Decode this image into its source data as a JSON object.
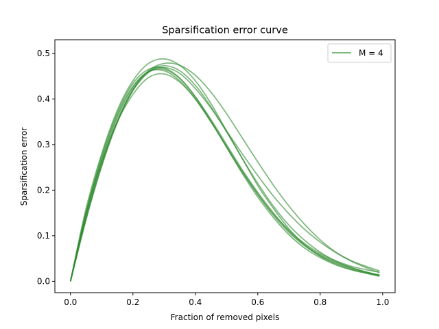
{
  "chart_data": {
    "type": "line",
    "title": "Sparsification error curve",
    "xlabel": "Fraction of removed pixels",
    "ylabel": "Sparsification error",
    "xlim": [
      -0.05,
      1.04
    ],
    "ylim": [
      -0.025,
      0.53
    ],
    "xticks": [
      0.0,
      0.2,
      0.4,
      0.6,
      0.8,
      1.0
    ],
    "xtick_labels": [
      "0.0",
      "0.2",
      "0.4",
      "0.6",
      "0.8",
      "1.0"
    ],
    "yticks": [
      0.0,
      0.1,
      0.2,
      0.3,
      0.4,
      0.5
    ],
    "ytick_labels": [
      "0.0",
      "0.1",
      "0.2",
      "0.3",
      "0.4",
      "0.5"
    ],
    "grid": false,
    "legend": {
      "position": "top-right",
      "entries": [
        {
          "label": "M = 4",
          "color": "#4fa34f"
        }
      ]
    },
    "line_color": "#2e8b2e",
    "line_opacity": 0.6,
    "x": [
      0.0,
      0.05,
      0.1,
      0.15,
      0.2,
      0.25,
      0.3,
      0.35,
      0.4,
      0.45,
      0.5,
      0.55,
      0.6,
      0.65,
      0.7,
      0.75,
      0.8,
      0.85,
      0.9,
      0.95,
      0.99
    ],
    "series": [
      {
        "values": [
          0.0,
          0.16,
          0.28,
          0.375,
          0.44,
          0.478,
          0.488,
          0.474,
          0.44,
          0.39,
          0.33,
          0.27,
          0.21,
          0.16,
          0.115,
          0.08,
          0.055,
          0.038,
          0.026,
          0.018,
          0.012
        ]
      },
      {
        "values": [
          0.0,
          0.145,
          0.265,
          0.36,
          0.425,
          0.46,
          0.465,
          0.445,
          0.405,
          0.355,
          0.3,
          0.245,
          0.195,
          0.15,
          0.11,
          0.08,
          0.058,
          0.042,
          0.03,
          0.02,
          0.014
        ]
      },
      {
        "values": [
          0.0,
          0.15,
          0.27,
          0.365,
          0.428,
          0.46,
          0.462,
          0.44,
          0.4,
          0.35,
          0.295,
          0.24,
          0.19,
          0.145,
          0.107,
          0.078,
          0.056,
          0.04,
          0.028,
          0.019,
          0.013
        ]
      },
      {
        "values": [
          0.0,
          0.135,
          0.252,
          0.348,
          0.418,
          0.458,
          0.469,
          0.456,
          0.423,
          0.38,
          0.33,
          0.28,
          0.232,
          0.187,
          0.148,
          0.114,
          0.086,
          0.063,
          0.045,
          0.032,
          0.023
        ]
      },
      {
        "values": [
          0.0,
          0.14,
          0.258,
          0.353,
          0.42,
          0.462,
          0.478,
          0.474,
          0.452,
          0.415,
          0.368,
          0.315,
          0.262,
          0.211,
          0.165,
          0.125,
          0.091,
          0.064,
          0.044,
          0.029,
          0.019
        ]
      },
      {
        "values": [
          0.0,
          0.138,
          0.255,
          0.35,
          0.42,
          0.46,
          0.473,
          0.462,
          0.43,
          0.383,
          0.328,
          0.27,
          0.215,
          0.165,
          0.123,
          0.09,
          0.064,
          0.044,
          0.03,
          0.02,
          0.013
        ]
      },
      {
        "values": [
          0.0,
          0.15,
          0.262,
          0.35,
          0.41,
          0.447,
          0.455,
          0.437,
          0.4,
          0.35,
          0.296,
          0.242,
          0.192,
          0.148,
          0.112,
          0.083,
          0.061,
          0.045,
          0.033,
          0.025,
          0.02
        ]
      },
      {
        "values": [
          0.0,
          0.152,
          0.275,
          0.37,
          0.434,
          0.465,
          0.468,
          0.446,
          0.405,
          0.352,
          0.294,
          0.237,
          0.185,
          0.14,
          0.102,
          0.073,
          0.052,
          0.036,
          0.025,
          0.017,
          0.011
        ]
      }
    ]
  }
}
